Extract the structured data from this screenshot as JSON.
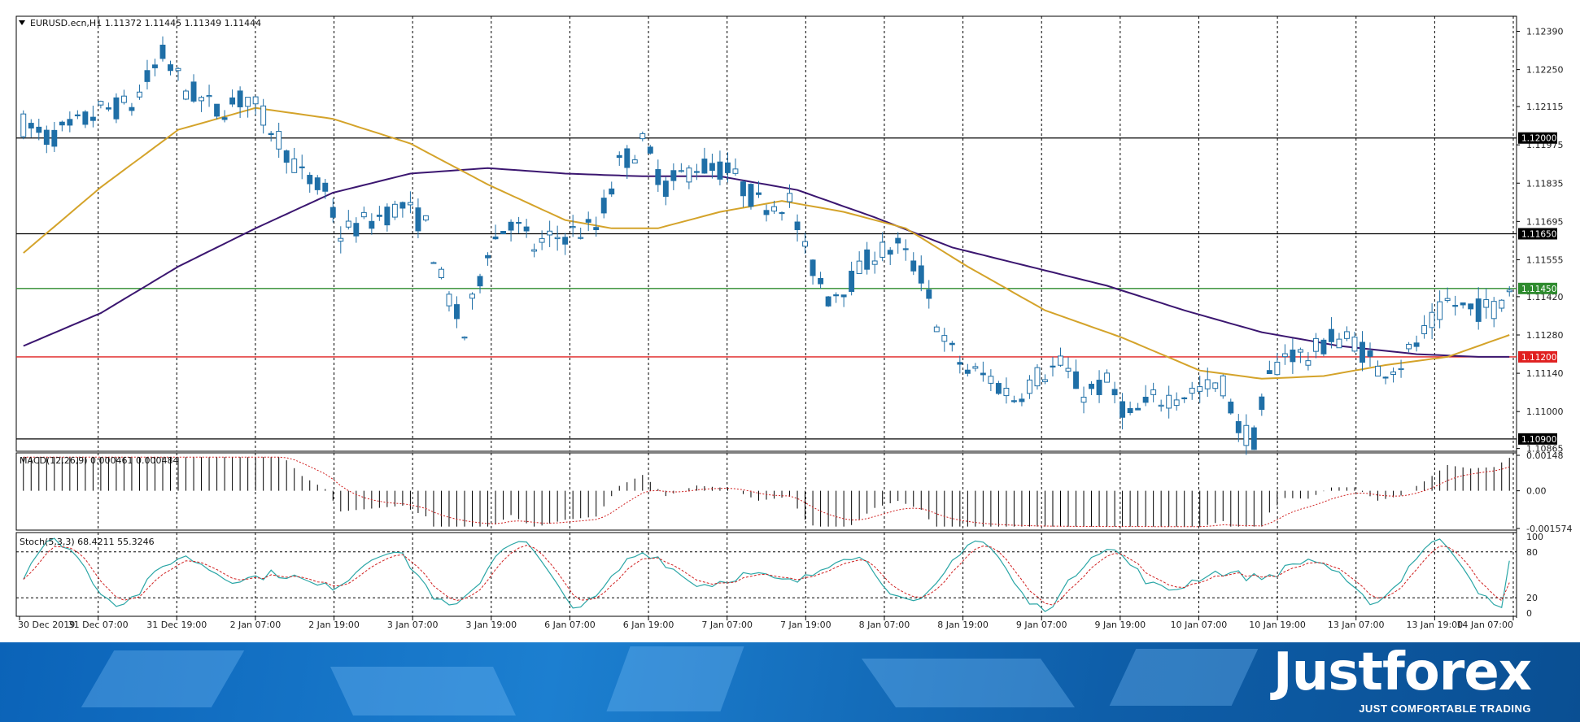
{
  "header": {
    "symbol_info": "EURUSD.ecn,H1  1.11372 1.11445 1.11349 1.11444"
  },
  "panels": {
    "macd_label": "MACD(12,26,9) 0.000461 0.000484",
    "stoch_label": "Stoch(5,3,3) 68.4211 55.3246"
  },
  "branding": {
    "logo": "Justforex",
    "tagline": "JUST COMFORTABLE TRADING"
  },
  "colors": {
    "background": "#ffffff",
    "grid": "#000000",
    "bull_body": "#ffffff",
    "bear_body": "#1f6fa7",
    "candle_outline": "#1f6fa7",
    "ma_fast": "#d4a32a",
    "ma_slow": "#3b1670",
    "level_black": "#000000",
    "level_green": "#2e8b2e",
    "level_red": "#e02020",
    "stoch_main": "#2aa6a6",
    "stoch_signal": "#d02020",
    "macd_signal": "#d02020",
    "banner": "#0f6cc0"
  },
  "chart_data": {
    "type": "candlestick",
    "symbol": "EURUSD.ecn",
    "timeframe": "H1",
    "current": {
      "open": 1.11372,
      "high": 1.11445,
      "low": 1.11349,
      "close": 1.11444
    },
    "x_ticks": [
      "30 Dec 2019",
      "31 Dec 07:00",
      "31 Dec 19:00",
      "2 Jan 07:00",
      "2 Jan 19:00",
      "3 Jan 07:00",
      "3 Jan 19:00",
      "6 Jan 07:00",
      "6 Jan 19:00",
      "7 Jan 07:00",
      "7 Jan 19:00",
      "8 Jan 07:00",
      "8 Jan 19:00",
      "9 Jan 07:00",
      "9 Jan 19:00",
      "10 Jan 07:00",
      "10 Jan 19:00",
      "13 Jan 07:00",
      "13 Jan 19:00",
      "14 Jan 07:00"
    ],
    "price_axis": {
      "ylim": [
        1.10855,
        1.12445
      ],
      "ticks": [
        "1.12390",
        "1.12250",
        "1.12115",
        "1.11975",
        "1.11835",
        "1.11695",
        "1.11555",
        "1.11420",
        "1.11280",
        "1.11140",
        "1.11000",
        "1.10865"
      ]
    },
    "levels": [
      {
        "value": 1.12,
        "label": "1.12000",
        "color": "#000000"
      },
      {
        "value": 1.1165,
        "label": "1.11650",
        "color": "#000000"
      },
      {
        "value": 1.1145,
        "label": "1.11450",
        "color": "#2e8b2e"
      },
      {
        "value": 1.112,
        "label": "1.11200",
        "color": "#e02020"
      },
      {
        "value": 1.109,
        "label": "1.10900",
        "color": "#000000"
      }
    ],
    "ma_fast_anchors": [
      [
        0,
        1.1158
      ],
      [
        10,
        1.1182
      ],
      [
        20,
        1.1203
      ],
      [
        30,
        1.1211
      ],
      [
        40,
        1.1207
      ],
      [
        50,
        1.1198
      ],
      [
        60,
        1.1183
      ],
      [
        70,
        1.117
      ],
      [
        76,
        1.1167
      ],
      [
        82,
        1.1167
      ],
      [
        90,
        1.1173
      ],
      [
        98,
        1.1177
      ],
      [
        106,
        1.1173
      ],
      [
        114,
        1.1167
      ],
      [
        122,
        1.1153
      ],
      [
        132,
        1.1137
      ],
      [
        142,
        1.1127
      ],
      [
        152,
        1.1115
      ],
      [
        160,
        1.1112
      ],
      [
        168,
        1.1113
      ],
      [
        176,
        1.1117
      ],
      [
        184,
        1.112
      ],
      [
        192,
        1.1128
      ]
    ],
    "ma_slow_anchors": [
      [
        0,
        1.1124
      ],
      [
        10,
        1.1136
      ],
      [
        20,
        1.1153
      ],
      [
        30,
        1.1167
      ],
      [
        40,
        1.118
      ],
      [
        50,
        1.1187
      ],
      [
        60,
        1.1189
      ],
      [
        70,
        1.1187
      ],
      [
        80,
        1.1186
      ],
      [
        90,
        1.1186
      ],
      [
        100,
        1.1181
      ],
      [
        110,
        1.1171
      ],
      [
        120,
        1.116
      ],
      [
        130,
        1.1153
      ],
      [
        140,
        1.1146
      ],
      [
        150,
        1.1137
      ],
      [
        160,
        1.1129
      ],
      [
        170,
        1.1124
      ],
      [
        180,
        1.1121
      ],
      [
        188,
        1.112
      ],
      [
        192,
        1.112
      ]
    ],
    "price_anchors": [
      [
        0,
        1.1205
      ],
      [
        3,
        1.12
      ],
      [
        6,
        1.1203
      ],
      [
        10,
        1.121
      ],
      [
        14,
        1.1212
      ],
      [
        18,
        1.123
      ],
      [
        21,
        1.1218
      ],
      [
        25,
        1.121
      ],
      [
        29,
        1.1215
      ],
      [
        33,
        1.12
      ],
      [
        36,
        1.1186
      ],
      [
        39,
        1.118
      ],
      [
        41,
        1.1165
      ],
      [
        45,
        1.117
      ],
      [
        49,
        1.1175
      ],
      [
        52,
        1.1168
      ],
      [
        54,
        1.1148
      ],
      [
        57,
        1.1128
      ],
      [
        60,
        1.116
      ],
      [
        63,
        1.117
      ],
      [
        66,
        1.116
      ],
      [
        70,
        1.1165
      ],
      [
        74,
        1.1167
      ],
      [
        77,
        1.119
      ],
      [
        80,
        1.1198
      ],
      [
        83,
        1.1182
      ],
      [
        87,
        1.119
      ],
      [
        91,
        1.1188
      ],
      [
        95,
        1.1176
      ],
      [
        99,
        1.1177
      ],
      [
        101,
        1.1158
      ],
      [
        104,
        1.1142
      ],
      [
        107,
        1.1148
      ],
      [
        110,
        1.1158
      ],
      [
        113,
        1.116
      ],
      [
        116,
        1.115
      ],
      [
        119,
        1.1125
      ],
      [
        122,
        1.1115
      ],
      [
        125,
        1.1112
      ],
      [
        128,
        1.1105
      ],
      [
        131,
        1.1113
      ],
      [
        134,
        1.1117
      ],
      [
        137,
        1.1107
      ],
      [
        140,
        1.111
      ],
      [
        143,
        1.1098
      ],
      [
        146,
        1.1104
      ],
      [
        149,
        1.1106
      ],
      [
        152,
        1.1108
      ],
      [
        155,
        1.111
      ],
      [
        157,
        1.1094
      ],
      [
        159,
        1.109
      ],
      [
        161,
        1.1112
      ],
      [
        163,
        1.1122
      ],
      [
        166,
        1.112
      ],
      [
        169,
        1.1127
      ],
      [
        172,
        1.1126
      ],
      [
        175,
        1.1115
      ],
      [
        178,
        1.1118
      ],
      [
        181,
        1.1128
      ],
      [
        184,
        1.114
      ],
      [
        187,
        1.1137
      ],
      [
        190,
        1.1138
      ],
      [
        192,
        1.1145
      ]
    ],
    "macd": {
      "name": "MACD(12,26,9)",
      "main": 0.000461,
      "signal": 0.000484,
      "ylim": [
        -0.001574,
        0.00148
      ],
      "ticks": [
        "0.00148",
        "0.00",
        "-0.001574"
      ]
    },
    "stochastic": {
      "name": "Stoch(5,3,3)",
      "main": 68.4211,
      "signal": 55.3246,
      "levels": [
        20,
        80
      ],
      "ticks": [
        "100",
        "80",
        "20",
        "0"
      ]
    }
  }
}
